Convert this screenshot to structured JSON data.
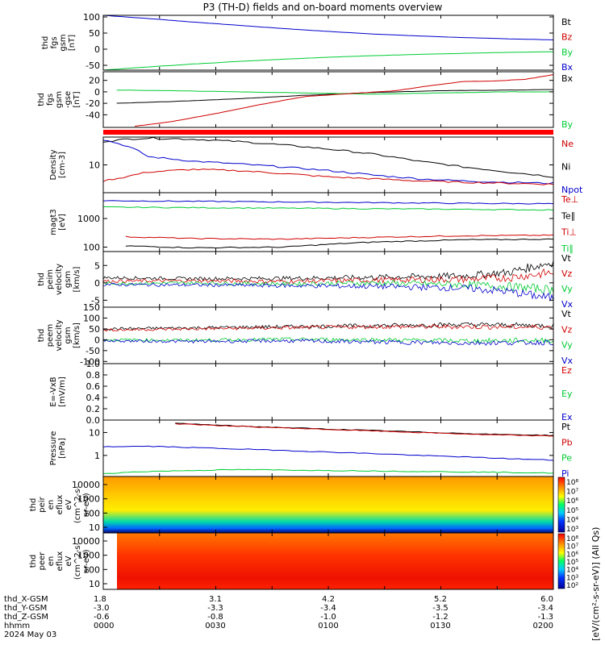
{
  "title": "P3 (TH-D) fields and on-board moments overview",
  "colors": {
    "black": "#000000",
    "red": "#d00000",
    "green": "#00cc33",
    "blue": "#0000cc",
    "band": "#ff0000"
  },
  "chart_data": [
    {
      "id": "fgs_gsm",
      "type": "line",
      "ylabel": [
        "thd",
        "fgs",
        "gsm",
        "[nT]"
      ],
      "yticks": [
        "100",
        "50",
        "0",
        "-50"
      ],
      "ylim": [
        -65,
        105
      ],
      "legend": [
        "Bt",
        "Bz",
        "By",
        "Bx"
      ],
      "legend_colors": [
        "black",
        "red",
        "green",
        "blue"
      ],
      "series": [
        {
          "color": "blue",
          "x": [
            0,
            0.1,
            0.2,
            0.3,
            0.4,
            0.5,
            0.6,
            0.7,
            0.8,
            0.9,
            1.0
          ],
          "y": [
            105,
            95,
            84,
            74,
            64,
            55,
            47,
            41,
            36,
            32,
            29
          ]
        },
        {
          "color": "green",
          "x": [
            0,
            0.1,
            0.2,
            0.3,
            0.4,
            0.5,
            0.6,
            0.7,
            0.8,
            0.9,
            1.0
          ],
          "y": [
            -65,
            -55,
            -46,
            -38,
            -31,
            -25,
            -20,
            -16,
            -13,
            -10,
            -8
          ]
        }
      ]
    },
    {
      "id": "fgs_gse",
      "type": "line",
      "ylabel": [
        "thd",
        "fgs",
        "gsm",
        "-gse",
        "[nT]"
      ],
      "yticks": [
        "20",
        "0",
        "-20",
        "-40"
      ],
      "ylim": [
        -62,
        35
      ],
      "legend": [
        "Bx",
        "By"
      ],
      "legend_colors": [
        "black",
        "green"
      ],
      "series": [
        {
          "color": "black",
          "x": [
            0.03,
            0.15,
            0.3,
            0.45,
            0.6,
            0.75,
            0.9,
            1.0
          ],
          "y": [
            -20,
            -17,
            -12,
            -6,
            -1,
            2,
            3,
            4
          ]
        },
        {
          "color": "green",
          "x": [
            0.03,
            0.15,
            0.3,
            0.45,
            0.6,
            0.75,
            0.9,
            1.0
          ],
          "y": [
            3,
            2,
            0,
            -2,
            -4,
            -2,
            0,
            0
          ]
        },
        {
          "color": "red",
          "x": [
            0.07,
            0.15,
            0.25,
            0.35,
            0.45,
            0.55,
            0.65,
            0.72,
            0.8,
            0.87,
            0.94,
            1.0
          ],
          "y": [
            -60,
            -52,
            -38,
            -22,
            -8,
            -3,
            2,
            10,
            18,
            19,
            22,
            30
          ]
        }
      ]
    },
    {
      "id": "state_band",
      "type": "bar",
      "color": "band"
    },
    {
      "id": "density",
      "type": "line",
      "scale": "log",
      "ylabel": [
        "Density",
        "[cm-3]"
      ],
      "yticks": [
        "10"
      ],
      "ylim": [
        2.5,
        40
      ],
      "legend": [
        "Ne",
        "Ni",
        "Npot"
      ],
      "legend_colors": [
        "red",
        "black",
        "blue"
      ],
      "series": [
        {
          "color": "black",
          "x": [
            0,
            0.05,
            0.1,
            0.2,
            0.3,
            0.4,
            0.5,
            0.6,
            0.7,
            0.8,
            0.9,
            1.0
          ],
          "y": [
            32,
            36,
            38,
            36,
            32,
            27,
            22,
            17,
            12,
            9,
            7,
            5.5
          ]
        },
        {
          "color": "blue",
          "x": [
            0,
            0.05,
            0.1,
            0.2,
            0.3,
            0.4,
            0.5,
            0.6,
            0.7,
            0.8,
            0.9,
            1.0
          ],
          "y": [
            35,
            26,
            15,
            12,
            10.5,
            9,
            7.5,
            6,
            5,
            4.5,
            4.2,
            4
          ]
        },
        {
          "color": "red",
          "x": [
            0,
            0.05,
            0.1,
            0.2,
            0.3,
            0.4,
            0.5,
            0.6,
            0.7,
            0.8,
            0.9,
            1.0
          ],
          "y": [
            4.5,
            5.5,
            7,
            8,
            7.5,
            6.5,
            5.5,
            5,
            4.5,
            4.2,
            4,
            3.8
          ]
        }
      ]
    },
    {
      "id": "temperature",
      "type": "line",
      "scale": "log",
      "ylabel": [
        "magt3",
        "[eV]"
      ],
      "yticks": [
        "1000",
        "100"
      ],
      "ylim": [
        70,
        8000
      ],
      "legend": [
        "Te⊥",
        "Te∥",
        "Ti⊥",
        "Ti∥"
      ],
      "legend_colors": [
        "red",
        "black",
        "red",
        "green"
      ],
      "series": [
        {
          "color": "blue",
          "x": [
            0,
            0.2,
            0.4,
            0.6,
            0.8,
            1.0
          ],
          "y": [
            4200,
            4000,
            3800,
            3600,
            3400,
            3300
          ]
        },
        {
          "color": "green",
          "x": [
            0,
            0.2,
            0.4,
            0.6,
            0.8,
            1.0
          ],
          "y": [
            2500,
            2400,
            2300,
            2200,
            2100,
            2000
          ]
        },
        {
          "color": "red",
          "x": [
            0.05,
            0.2,
            0.4,
            0.6,
            0.8,
            1.0
          ],
          "y": [
            230,
            200,
            190,
            220,
            250,
            260
          ]
        },
        {
          "color": "black",
          "x": [
            0.05,
            0.2,
            0.4,
            0.6,
            0.8,
            1.0
          ],
          "y": [
            110,
            95,
            100,
            150,
            180,
            190
          ]
        }
      ]
    },
    {
      "id": "peim_velocity",
      "type": "line",
      "ylabel": [
        "thd",
        "peim",
        "velocity",
        "gsm",
        "[km/s]"
      ],
      "yticks": [
        "5",
        "0",
        "-5"
      ],
      "ylim": [
        -7,
        9
      ],
      "legend": [
        "Vt",
        "Vz",
        "Vy",
        "Vx"
      ],
      "legend_colors": [
        "black",
        "red",
        "green",
        "blue"
      ],
      "series": [
        {
          "color": "black",
          "x": [
            0,
            0.2,
            0.4,
            0.6,
            0.8,
            0.9,
            1.0
          ],
          "y": [
            1.5,
            1.2,
            1.3,
            1.6,
            2.0,
            3.0,
            6.0
          ]
        },
        {
          "color": "red",
          "x": [
            0,
            0.2,
            0.4,
            0.6,
            0.8,
            0.9,
            1.0
          ],
          "y": [
            0.5,
            0.6,
            0.4,
            0.8,
            1.0,
            1.5,
            3.0
          ]
        },
        {
          "color": "green",
          "x": [
            0,
            0.2,
            0.4,
            0.6,
            0.8,
            0.9,
            1.0
          ],
          "y": [
            -0.2,
            0,
            -0.3,
            0,
            -0.5,
            -1.0,
            -2.0
          ]
        },
        {
          "color": "blue",
          "x": [
            0,
            0.2,
            0.4,
            0.6,
            0.8,
            0.9,
            1.0
          ],
          "y": [
            -0.5,
            -0.6,
            -0.8,
            -1.0,
            -1.5,
            -2.5,
            -4.5
          ]
        }
      ]
    },
    {
      "id": "peem_velocity",
      "type": "line",
      "ylabel": [
        "thd",
        "peem",
        "velocity",
        "gsm",
        "[km/s]"
      ],
      "yticks": [
        "150",
        "100",
        "50",
        "0",
        "-50",
        "-100"
      ],
      "ylim": [
        -110,
        150
      ],
      "legend": [
        "Vt",
        "Vz",
        "Vy",
        "Vx"
      ],
      "legend_colors": [
        "black",
        "red",
        "green",
        "blue"
      ],
      "series": [
        {
          "color": "black",
          "x": [
            0,
            0.2,
            0.4,
            0.6,
            0.8,
            1.0
          ],
          "y": [
            50,
            55,
            60,
            65,
            70,
            65
          ]
        },
        {
          "color": "red",
          "x": [
            0,
            0.2,
            0.4,
            0.6,
            0.8,
            1.0
          ],
          "y": [
            45,
            50,
            55,
            60,
            60,
            58
          ]
        },
        {
          "color": "green",
          "x": [
            0,
            0.2,
            0.4,
            0.6,
            0.8,
            1.0
          ],
          "y": [
            0,
            -2,
            2,
            0,
            -5,
            -2
          ]
        },
        {
          "color": "blue",
          "x": [
            0,
            0.2,
            0.4,
            0.6,
            0.8,
            1.0
          ],
          "y": [
            -5,
            -8,
            -5,
            -10,
            -15,
            -12
          ]
        }
      ]
    },
    {
      "id": "efield",
      "type": "line",
      "ylabel": [
        "E=-VxB",
        "[mV/m]"
      ],
      "yticks": [
        "1.0",
        "0.8",
        "0.6",
        "0.4",
        "0.2",
        "0.0"
      ],
      "ylim": [
        0,
        1
      ],
      "legend": [
        "Ez",
        "Ey",
        "Ex"
      ],
      "legend_colors": [
        "red",
        "green",
        "blue"
      ],
      "series": []
    },
    {
      "id": "pressure",
      "type": "line",
      "scale": "log",
      "ylabel": [
        "Pressure",
        "[nPa]"
      ],
      "yticks": [
        "10",
        "1"
      ],
      "ylim": [
        0.12,
        35
      ],
      "legend": [
        "Pt",
        "Pb",
        "Pe",
        "Pi"
      ],
      "legend_colors": [
        "black",
        "red",
        "green",
        "blue"
      ],
      "series": [
        {
          "color": "black",
          "x": [
            0.16,
            0.3,
            0.5,
            0.7,
            0.85,
            1.0
          ],
          "y": [
            25,
            19,
            14,
            10.5,
            8.5,
            7.5
          ]
        },
        {
          "color": "red",
          "x": [
            0.16,
            0.3,
            0.5,
            0.7,
            0.85,
            1.0
          ],
          "y": [
            24,
            18.5,
            13.5,
            10,
            8,
            7
          ]
        },
        {
          "color": "blue",
          "x": [
            0,
            0.1,
            0.3,
            0.5,
            0.7,
            0.9,
            1.0
          ],
          "y": [
            2.4,
            2.5,
            1.9,
            1.4,
            1.0,
            0.72,
            0.62
          ]
        },
        {
          "color": "green",
          "x": [
            0,
            0.1,
            0.3,
            0.5,
            0.7,
            0.9,
            1.0
          ],
          "y": [
            0.16,
            0.2,
            0.24,
            0.22,
            0.2,
            0.18,
            0.17
          ]
        }
      ]
    },
    {
      "id": "peir_spec",
      "type": "heatmap",
      "ylabel": [
        "thd",
        "peir",
        "en",
        "eflux",
        "eV",
        "(cm^2-s-",
        "sr-eV)"
      ],
      "yticks": [
        "10000",
        "1000",
        "100",
        "10"
      ],
      "colorbar_ticks": [
        "10⁸",
        "10⁷",
        "10⁶",
        "10⁵",
        "10⁴",
        "10³"
      ]
    },
    {
      "id": "peer_spec",
      "type": "heatmap",
      "ylabel": [
        "thd",
        "peer",
        "en",
        "eflux",
        "eV",
        "(cm^2-s-",
        "sr-eV)"
      ],
      "yticks": [
        "10000",
        "1000",
        "100",
        "10"
      ],
      "colorbar_ticks": [
        "10⁸",
        "10⁷",
        "10⁶",
        "10⁵",
        "10⁴",
        "10³",
        "10²"
      ]
    }
  ],
  "colorbar_label": "[eV/(cm²-s-sr-eV)] (All Qs)",
  "time_axis": {
    "rows": [
      {
        "label": "thd_X-GSM",
        "values": [
          "1.8",
          "3.1",
          "4.2",
          "5.2",
          "6.0"
        ]
      },
      {
        "label": "thd_Y-GSM",
        "values": [
          "-3.0",
          "-3.3",
          "-3.4",
          "-3.5",
          "-3.4"
        ]
      },
      {
        "label": "thd_Z-GSM",
        "values": [
          "-0.6",
          "-0.8",
          "-1.0",
          "-1.2",
          "-1.3"
        ]
      },
      {
        "label": "hhmm",
        "values": [
          "0000",
          "0030",
          "0100",
          "0130",
          "0200"
        ]
      }
    ],
    "date": "2024 May 03"
  }
}
